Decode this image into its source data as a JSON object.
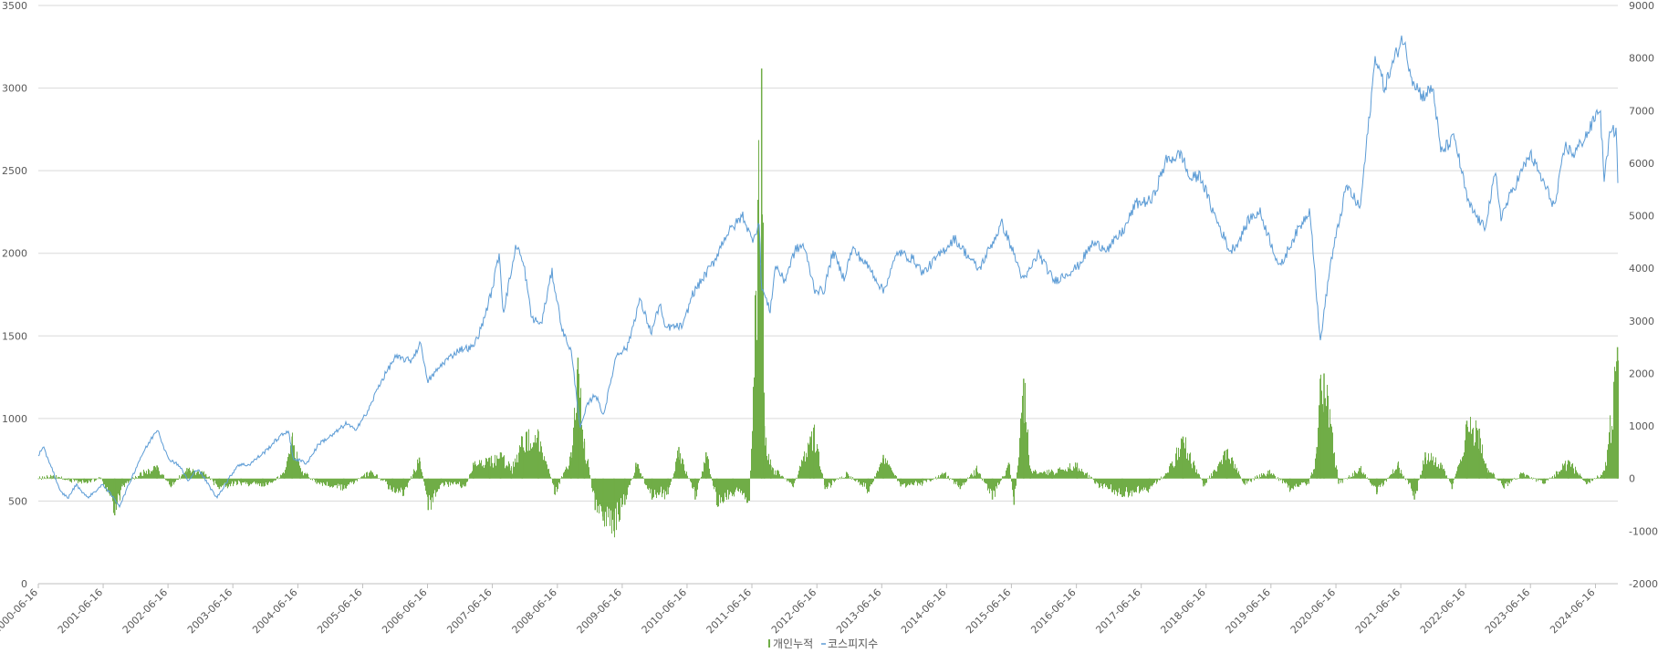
{
  "chart_data": {
    "type": "line",
    "title": "",
    "xlabel": "",
    "ylabel": "",
    "y_left": {
      "min": 0,
      "max": 3500,
      "ticks": [
        0,
        500,
        1000,
        1500,
        2000,
        2500,
        3000,
        3500
      ]
    },
    "y_right": {
      "min": -2000,
      "max": 9000,
      "ticks": [
        -2000,
        -1000,
        0,
        1000,
        2000,
        3000,
        4000,
        5000,
        6000,
        7000,
        8000,
        9000
      ]
    },
    "x_range": [
      "2000-06-16",
      "2024-10-20"
    ],
    "x_ticks": [
      "2000-06-16",
      "2001-06-16",
      "2002-06-16",
      "2003-06-16",
      "2004-06-16",
      "2005-06-16",
      "2006-06-16",
      "2007-06-16",
      "2008-06-16",
      "2009-06-16",
      "2010-06-16",
      "2011-06-16",
      "2012-06-16",
      "2013-06-16",
      "2014-06-16",
      "2015-06-16",
      "2016-06-16",
      "2017-06-16",
      "2018-06-16",
      "2019-06-16",
      "2020-06-16",
      "2021-06-16",
      "2022-06-16",
      "2023-06-16",
      "2024-06-16"
    ],
    "grid": true,
    "legend": "bottom",
    "series": [
      {
        "name": "개인누적",
        "kind": "column",
        "axis": "right",
        "color": "#70ad47",
        "points": [
          [
            "2000-06-16",
            0
          ],
          [
            "2000-09-01",
            50
          ],
          [
            "2000-12-01",
            -30
          ],
          [
            "2001-03-01",
            -80
          ],
          [
            "2001-06-01",
            20
          ],
          [
            "2001-08-20",
            -700
          ],
          [
            "2001-10-01",
            -150
          ],
          [
            "2002-01-15",
            100
          ],
          [
            "2002-04-15",
            250
          ],
          [
            "2002-07-01",
            -150
          ],
          [
            "2002-10-01",
            200
          ],
          [
            "2003-01-15",
            80
          ],
          [
            "2003-04-01",
            -200
          ],
          [
            "2003-08-01",
            -100
          ],
          [
            "2003-12-01",
            -150
          ],
          [
            "2004-04-01",
            100
          ],
          [
            "2004-05-15",
            800
          ],
          [
            "2004-06-30",
            200
          ],
          [
            "2004-10-01",
            -100
          ],
          [
            "2005-03-01",
            -200
          ],
          [
            "2005-08-01",
            150
          ],
          [
            "2005-12-01",
            -250
          ],
          [
            "2006-02-01",
            -300
          ],
          [
            "2006-05-01",
            400
          ],
          [
            "2006-06-20",
            -600
          ],
          [
            "2006-09-01",
            -100
          ],
          [
            "2007-01-15",
            -150
          ],
          [
            "2007-03-01",
            300
          ],
          [
            "2007-06-01",
            400
          ],
          [
            "2007-08-01",
            500
          ],
          [
            "2007-10-01",
            200
          ],
          [
            "2007-12-01",
            800
          ],
          [
            "2008-03-01",
            900
          ],
          [
            "2008-06-01",
            -300
          ],
          [
            "2008-09-01",
            500
          ],
          [
            "2008-10-10",
            2300
          ],
          [
            "2008-11-15",
            700
          ],
          [
            "2009-01-15",
            -600
          ],
          [
            "2009-03-01",
            -800
          ],
          [
            "2009-05-01",
            -1000
          ],
          [
            "2009-07-01",
            -500
          ],
          [
            "2009-09-01",
            300
          ],
          [
            "2009-12-01",
            -400
          ],
          [
            "2010-03-01",
            -300
          ],
          [
            "2010-05-01",
            600
          ],
          [
            "2010-08-01",
            -400
          ],
          [
            "2010-10-01",
            500
          ],
          [
            "2010-12-01",
            -500
          ],
          [
            "2011-03-01",
            -300
          ],
          [
            "2011-06-01",
            -400
          ],
          [
            "2011-08-10",
            7800
          ],
          [
            "2011-08-25",
            1000
          ],
          [
            "2011-10-01",
            250
          ],
          [
            "2012-02-01",
            -150
          ],
          [
            "2012-05-10",
            800
          ],
          [
            "2012-05-30",
            900
          ],
          [
            "2012-08-01",
            -200
          ],
          [
            "2012-12-01",
            100
          ],
          [
            "2013-04-01",
            -250
          ],
          [
            "2013-06-25",
            450
          ],
          [
            "2013-10-01",
            -150
          ],
          [
            "2014-02-01",
            -100
          ],
          [
            "2014-06-01",
            100
          ],
          [
            "2014-09-01",
            -200
          ],
          [
            "2014-12-01",
            200
          ],
          [
            "2015-03-01",
            -400
          ],
          [
            "2015-06-01",
            300
          ],
          [
            "2015-07-01",
            -500
          ],
          [
            "2015-08-24",
            1900
          ],
          [
            "2015-10-01",
            150
          ],
          [
            "2016-02-01",
            150
          ],
          [
            "2016-06-20",
            300
          ],
          [
            "2016-10-01",
            -100
          ],
          [
            "2017-03-01",
            -350
          ],
          [
            "2017-08-01",
            -200
          ],
          [
            "2017-11-01",
            100
          ],
          [
            "2018-02-06",
            800
          ],
          [
            "2018-06-01",
            -150
          ],
          [
            "2018-10-11",
            550
          ],
          [
            "2019-01-15",
            -100
          ],
          [
            "2019-06-01",
            150
          ],
          [
            "2019-10-01",
            -200
          ],
          [
            "2020-01-15",
            -100
          ],
          [
            "2020-03-01",
            600
          ],
          [
            "2020-03-20",
            1900
          ],
          [
            "2020-04-10",
            2000
          ],
          [
            "2020-07-01",
            -100
          ],
          [
            "2020-11-01",
            200
          ],
          [
            "2021-02-01",
            -300
          ],
          [
            "2021-06-01",
            300
          ],
          [
            "2021-09-01",
            -400
          ],
          [
            "2021-11-01",
            500
          ],
          [
            "2022-01-27",
            300
          ],
          [
            "2022-04-01",
            -200
          ],
          [
            "2022-06-23",
            1100
          ],
          [
            "2022-09-01",
            950
          ],
          [
            "2022-10-15",
            200
          ],
          [
            "2023-01-15",
            -150
          ],
          [
            "2023-05-01",
            100
          ],
          [
            "2023-09-01",
            -100
          ],
          [
            "2024-01-15",
            350
          ],
          [
            "2024-05-01",
            -100
          ],
          [
            "2024-08-05",
            150
          ],
          [
            "2024-10-18",
            2500
          ]
        ]
      },
      {
        "name": "코스피지수",
        "kind": "line",
        "axis": "left",
        "color": "#5b9bd5",
        "points": [
          [
            "2000-06-16",
            780
          ],
          [
            "2000-07-15",
            820
          ],
          [
            "2000-09-01",
            700
          ],
          [
            "2000-10-15",
            560
          ],
          [
            "2000-12-01",
            520
          ],
          [
            "2001-01-15",
            600
          ],
          [
            "2001-03-20",
            520
          ],
          [
            "2001-06-16",
            600
          ],
          [
            "2001-09-17",
            470
          ],
          [
            "2001-11-15",
            620
          ],
          [
            "2002-01-15",
            770
          ],
          [
            "2002-04-18",
            940
          ],
          [
            "2002-06-15",
            760
          ],
          [
            "2002-08-15",
            720
          ],
          [
            "2002-10-10",
            620
          ],
          [
            "2002-12-01",
            700
          ],
          [
            "2003-03-17",
            520
          ],
          [
            "2003-05-15",
            620
          ],
          [
            "2003-07-15",
            720
          ],
          [
            "2003-09-15",
            720
          ],
          [
            "2003-12-15",
            800
          ],
          [
            "2004-02-15",
            870
          ],
          [
            "2004-04-23",
            930
          ],
          [
            "2004-05-20",
            760
          ],
          [
            "2004-08-05",
            730
          ],
          [
            "2004-10-15",
            850
          ],
          [
            "2004-12-30",
            900
          ],
          [
            "2005-03-15",
            970
          ],
          [
            "2005-05-01",
            930
          ],
          [
            "2005-07-15",
            1040
          ],
          [
            "2005-09-15",
            1200
          ],
          [
            "2005-12-15",
            1370
          ],
          [
            "2006-03-15",
            1350
          ],
          [
            "2006-05-11",
            1460
          ],
          [
            "2006-06-14",
            1220
          ],
          [
            "2006-09-15",
            1340
          ],
          [
            "2006-12-15",
            1420
          ],
          [
            "2007-02-27",
            1430
          ],
          [
            "2007-04-15",
            1550
          ],
          [
            "2007-06-15",
            1780
          ],
          [
            "2007-07-25",
            2005
          ],
          [
            "2007-08-16",
            1640
          ],
          [
            "2007-10-31",
            2060
          ],
          [
            "2007-12-15",
            1900
          ],
          [
            "2008-01-22",
            1610
          ],
          [
            "2008-03-17",
            1570
          ],
          [
            "2008-05-16",
            1890
          ],
          [
            "2008-07-15",
            1530
          ],
          [
            "2008-09-01",
            1410
          ],
          [
            "2008-10-24",
            940
          ],
          [
            "2008-12-01",
            1080
          ],
          [
            "2009-01-15",
            1150
          ],
          [
            "2009-03-03",
            1020
          ],
          [
            "2009-05-15",
            1390
          ],
          [
            "2009-07-15",
            1430
          ],
          [
            "2009-09-22",
            1720
          ],
          [
            "2009-11-27",
            1520
          ],
          [
            "2010-01-15",
            1700
          ],
          [
            "2010-02-08",
            1550
          ],
          [
            "2010-05-25",
            1560
          ],
          [
            "2010-07-15",
            1750
          ],
          [
            "2010-09-15",
            1850
          ],
          [
            "2010-11-15",
            1950
          ],
          [
            "2011-01-15",
            2100
          ],
          [
            "2011-04-27",
            2230
          ],
          [
            "2011-06-15",
            2080
          ],
          [
            "2011-07-27",
            2180
          ],
          [
            "2011-08-09",
            1800
          ],
          [
            "2011-09-26",
            1650
          ],
          [
            "2011-10-28",
            1930
          ],
          [
            "2011-12-15",
            1830
          ],
          [
            "2012-02-15",
            2020
          ],
          [
            "2012-04-02",
            2050
          ],
          [
            "2012-06-04",
            1780
          ],
          [
            "2012-07-25",
            1770
          ],
          [
            "2012-09-14",
            2010
          ],
          [
            "2012-11-15",
            1850
          ],
          [
            "2013-01-02",
            2030
          ],
          [
            "2013-04-15",
            1900
          ],
          [
            "2013-06-25",
            1770
          ],
          [
            "2013-09-15",
            2010
          ],
          [
            "2013-12-15",
            1960
          ],
          [
            "2014-02-04",
            1880
          ],
          [
            "2014-07-30",
            2090
          ],
          [
            "2014-12-15",
            1900
          ],
          [
            "2015-04-24",
            2180
          ],
          [
            "2015-06-15",
            2040
          ],
          [
            "2015-08-24",
            1830
          ],
          [
            "2015-11-15",
            2000
          ],
          [
            "2016-02-12",
            1830
          ],
          [
            "2016-06-24",
            1920
          ],
          [
            "2016-09-15",
            2060
          ],
          [
            "2016-12-15",
            2030
          ],
          [
            "2017-03-15",
            2150
          ],
          [
            "2017-05-15",
            2300
          ],
          [
            "2017-08-15",
            2320
          ],
          [
            "2017-11-03",
            2560
          ],
          [
            "2018-01-29",
            2600
          ],
          [
            "2018-03-15",
            2450
          ],
          [
            "2018-05-15",
            2470
          ],
          [
            "2018-07-15",
            2280
          ],
          [
            "2018-10-29",
            2010
          ],
          [
            "2018-12-15",
            2070
          ],
          [
            "2019-02-15",
            2210
          ],
          [
            "2019-04-15",
            2250
          ],
          [
            "2019-08-06",
            1910
          ],
          [
            "2019-10-15",
            2080
          ],
          [
            "2020-01-22",
            2270
          ],
          [
            "2020-03-19",
            1460
          ],
          [
            "2020-05-15",
            1930
          ],
          [
            "2020-08-15",
            2410
          ],
          [
            "2020-10-30",
            2270
          ],
          [
            "2021-01-25",
            3200
          ],
          [
            "2021-03-15",
            3000
          ],
          [
            "2021-06-25",
            3310
          ],
          [
            "2021-08-20",
            3060
          ],
          [
            "2021-10-15",
            2950
          ],
          [
            "2021-12-15",
            3000
          ],
          [
            "2022-01-27",
            2610
          ],
          [
            "2022-04-15",
            2700
          ],
          [
            "2022-07-01",
            2300
          ],
          [
            "2022-09-30",
            2150
          ],
          [
            "2022-12-01",
            2480
          ],
          [
            "2023-01-02",
            2220
          ],
          [
            "2023-03-15",
            2400
          ],
          [
            "2023-06-15",
            2600
          ],
          [
            "2023-10-31",
            2280
          ],
          [
            "2023-12-28",
            2650
          ],
          [
            "2024-02-15",
            2600
          ],
          [
            "2024-05-15",
            2750
          ],
          [
            "2024-07-11",
            2890
          ],
          [
            "2024-08-05",
            2440
          ],
          [
            "2024-09-01",
            2700
          ],
          [
            "2024-10-10",
            2760
          ],
          [
            "2024-10-20",
            2450
          ]
        ]
      }
    ]
  }
}
